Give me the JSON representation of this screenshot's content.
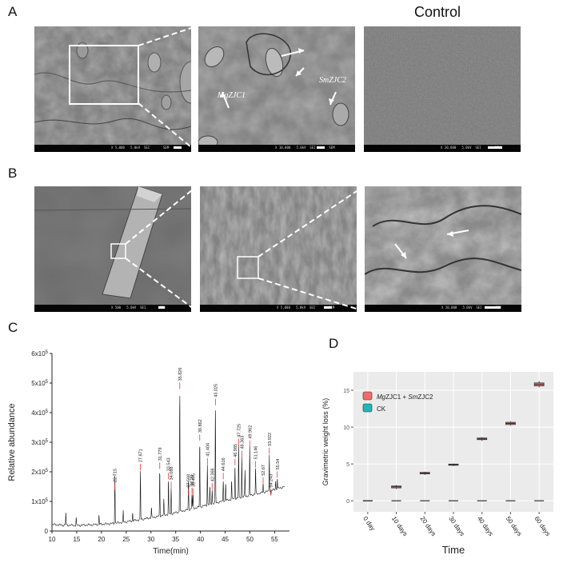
{
  "panels": {
    "A": "A",
    "B": "B",
    "C": "C",
    "D": "D"
  },
  "panel_a": {
    "control_title": "Control",
    "label_mg": "MgZJC1",
    "label_sm": "SmZJC2",
    "bar1": "X 5,000   5.0kV  SEI       SEM",
    "bar2": "X 10,000   5.0kV  SEI       SEM",
    "bar3": "X 20,000   5.0kV  SEI       SEM"
  },
  "panel_b": {
    "bar1": "X 500   5.0kV  SEI       SEM",
    "bar2": "X 5,000   5.0kV  SEI       SEM",
    "bar3": "X 20,000   5.0kV  SEI       SEM"
  },
  "chart_data": [
    {
      "type": "line",
      "panel": "C",
      "xlabel": "Time(min)",
      "ylabel": "Relative abundance",
      "xlim": [
        10,
        58
      ],
      "ylim": [
        0,
        600000
      ],
      "xticks": [
        10,
        15,
        20,
        25,
        30,
        35,
        40,
        45,
        50,
        55
      ],
      "yticks": [
        {
          "value": 0,
          "label": "0"
        },
        {
          "value": 100000,
          "label": "1x10^5"
        },
        {
          "value": 200000,
          "label": "2x10^5"
        },
        {
          "value": 300000,
          "label": "3x10^5"
        },
        {
          "value": 400000,
          "label": "4x10^5"
        },
        {
          "value": 500000,
          "label": "5x10^5"
        },
        {
          "value": 600000,
          "label": "6x10^5"
        }
      ],
      "baseline": [
        [
          10,
          22000
        ],
        [
          12,
          20000
        ],
        [
          15,
          19000
        ],
        [
          18,
          21000
        ],
        [
          22,
          25000
        ],
        [
          25,
          31000
        ],
        [
          28,
          39000
        ],
        [
          31,
          48000
        ],
        [
          34,
          58000
        ],
        [
          37,
          70000
        ],
        [
          40,
          82000
        ],
        [
          43,
          95000
        ],
        [
          46,
          106000
        ],
        [
          49,
          117000
        ],
        [
          52,
          128000
        ],
        [
          55,
          140000
        ],
        [
          57,
          150000
        ]
      ],
      "minor_peaks": [
        [
          12.8,
          62000
        ],
        [
          14.9,
          45000
        ],
        [
          19.5,
          55000
        ],
        [
          22.7,
          85000
        ],
        [
          24.4,
          68000
        ],
        [
          26.3,
          62000
        ],
        [
          30.1,
          78000
        ],
        [
          32.6,
          105000
        ],
        [
          37.6,
          132000
        ],
        [
          41.9,
          150000
        ],
        [
          45.1,
          165000
        ],
        [
          46.3,
          172000
        ],
        [
          49.0,
          205000
        ],
        [
          55.2,
          168000
        ]
      ],
      "peaks": [
        {
          "x": 22.715,
          "y": 138000,
          "label": "22.715"
        },
        {
          "x": 27.871,
          "y": 205000,
          "label": "27.871"
        },
        {
          "x": 31.779,
          "y": 210000,
          "label": "31.779"
        },
        {
          "x": 33.543,
          "y": 175000,
          "label": "33.543"
        },
        {
          "x": 34.088,
          "y": 145000,
          "label": "34.088"
        },
        {
          "x": 35.826,
          "y": 480000,
          "label": "35.826"
        },
        {
          "x": 37.568,
          "y": 120000,
          "label": "37.568"
        },
        {
          "x": 38.29,
          "y": 125000,
          "label": "38.29"
        },
        {
          "x": 38.495,
          "y": 122000,
          "label": "38.495"
        },
        {
          "x": 39.862,
          "y": 305000,
          "label": "39.862"
        },
        {
          "x": 41.404,
          "y": 225000,
          "label": "41.404"
        },
        {
          "x": 42.366,
          "y": 140000,
          "label": "42.366"
        },
        {
          "x": 43.025,
          "y": 425000,
          "label": "43.025"
        },
        {
          "x": 44.616,
          "y": 175000,
          "label": "44.616"
        },
        {
          "x": 46.985,
          "y": 222000,
          "label": "46.985"
        },
        {
          "x": 47.725,
          "y": 290000,
          "label": "47.725"
        },
        {
          "x": 48.363,
          "y": 250000,
          "label": "48.363"
        },
        {
          "x": 49.962,
          "y": 285000,
          "label": "49.962"
        },
        {
          "x": 51.146,
          "y": 215000,
          "label": "51.146"
        },
        {
          "x": 52.67,
          "y": 160000,
          "label": "52.67"
        },
        {
          "x": 53.922,
          "y": 260000,
          "label": "53.922"
        },
        {
          "x": 54.243,
          "y": 120000,
          "label": "54.243"
        },
        {
          "x": 55.54,
          "y": 180000,
          "label": "55.54"
        }
      ]
    },
    {
      "type": "box",
      "panel": "D",
      "xlabel": "Time",
      "ylabel": "Gravimetric weight loss (%)",
      "ylim": [
        -1.5,
        17.5
      ],
      "yticks": [
        0,
        5,
        10,
        15
      ],
      "categories": [
        "0 day",
        "10 days",
        "20 days",
        "30 days",
        "40 days",
        "50 days",
        "60 days"
      ],
      "series": [
        {
          "name": "MgZJC1 + SmZJC2",
          "color": "#f26b6b",
          "boxes": [
            [
              0.0,
              0.0,
              0.0,
              0.0,
              0.0
            ],
            [
              1.6,
              1.75,
              1.9,
              2.0,
              2.15
            ],
            [
              3.5,
              3.65,
              3.75,
              3.85,
              3.95
            ],
            [
              4.7,
              4.82,
              4.9,
              4.98,
              5.05
            ],
            [
              8.1,
              8.3,
              8.4,
              8.52,
              8.65
            ],
            [
              10.2,
              10.35,
              10.5,
              10.65,
              10.8
            ],
            [
              15.4,
              15.6,
              15.8,
              16.0,
              16.25
            ]
          ]
        },
        {
          "name": "CK",
          "color": "#20b7b7",
          "boxes": [
            [
              0,
              0,
              0,
              0,
              0
            ],
            [
              0,
              0,
              0,
              0,
              0
            ],
            [
              0,
              0,
              0,
              0,
              0
            ],
            [
              0,
              0,
              0,
              0,
              0
            ],
            [
              0,
              0,
              0,
              0,
              0
            ],
            [
              0,
              0,
              0,
              0,
              0
            ],
            [
              0,
              0,
              0,
              0,
              0
            ]
          ]
        }
      ],
      "legend": [
        "MgZJC1 + SmZJC2",
        "CK"
      ],
      "legend_position": "top-left",
      "background": "#ebebeb"
    }
  ]
}
